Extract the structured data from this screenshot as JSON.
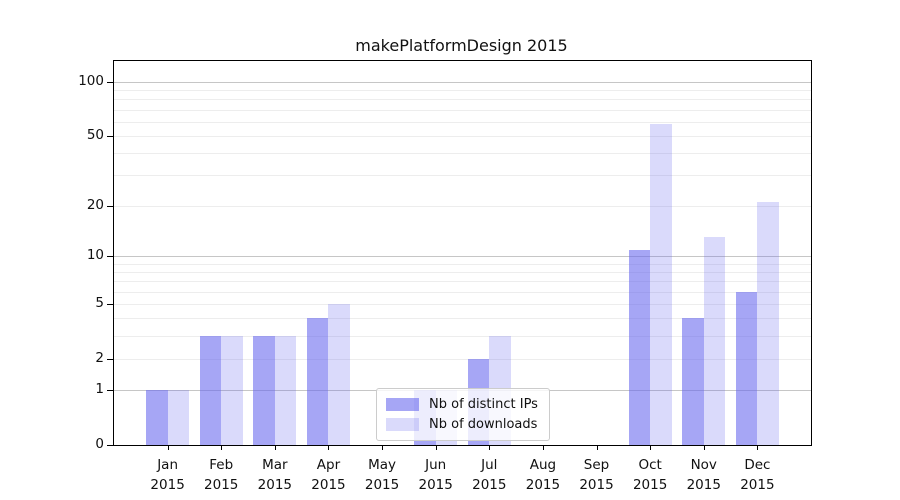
{
  "figure": {
    "title": "makePlatformDesign 2015"
  },
  "chart_data": {
    "type": "bar",
    "title": "makePlatformDesign 2015",
    "categories": [
      "Jan 2015",
      "Feb 2015",
      "Mar 2015",
      "Apr 2015",
      "May 2015",
      "Jun 2015",
      "Jul 2015",
      "Aug 2015",
      "Sep 2015",
      "Oct 2015",
      "Nov 2015",
      "Dec 2015"
    ],
    "series": [
      {
        "name": "Nb of distinct IPs",
        "color": "rgba(102,102,238,0.58)",
        "solid_color": "#aaaaee",
        "values": [
          1,
          3,
          3,
          4,
          0,
          1,
          2,
          0,
          0,
          11,
          4,
          6
        ]
      },
      {
        "name": "Nb of downloads",
        "color": "rgba(102,102,238,0.24)",
        "solid_color": "#dcdcf8",
        "values": [
          1,
          3,
          3,
          5,
          0,
          1,
          3,
          0,
          0,
          58,
          13,
          21
        ]
      }
    ],
    "yscale": "log10(1+v)",
    "ylim": [
      0,
      110
    ],
    "yticks": [
      0,
      1,
      2,
      5,
      10,
      20,
      50,
      100
    ],
    "major_gridlines": [
      1,
      10,
      100
    ],
    "minor_gridlines": [
      2,
      3,
      4,
      5,
      6,
      7,
      8,
      9,
      20,
      30,
      40,
      50,
      60,
      70,
      80,
      90
    ],
    "grid": true,
    "legend_position": "lower center",
    "xlabel": "",
    "ylabel": ""
  },
  "colors": {
    "bar_distinct_ips": "#aaaaee",
    "bar_downloads": "#dcdcf8",
    "major_grid": "#c6c6c6",
    "minor_grid": "#ededed",
    "spine": "#000000"
  }
}
